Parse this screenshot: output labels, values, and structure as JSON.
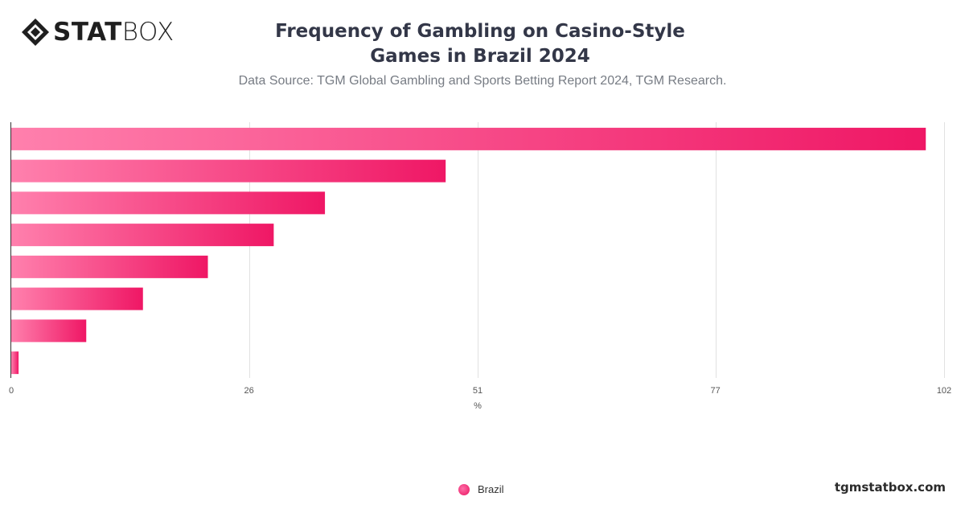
{
  "brand": {
    "logo_bold": "STAT",
    "logo_light": "BOX",
    "website": "tgmstatbox.com"
  },
  "colors": {
    "bar_start": "#ff80ad",
    "bar_end": "#ef1765",
    "grid": "#e1e1e1",
    "axis": "#333333"
  },
  "chart_data": {
    "type": "bar",
    "orientation": "horizontal",
    "title": "Frequency of Gambling on Casino-Style Games in Brazil 2024",
    "subtitle": "Data Source: TGM Global Gambling and Sports Betting Report 2024, TGM Research.",
    "xlabel": "%",
    "ylabel": "",
    "xlim": [
      0,
      102
    ],
    "xticks": [
      "0",
      "26",
      "51",
      "77",
      "102"
    ],
    "grid": true,
    "legend_position": "bottom",
    "series": [
      {
        "name": "Brazil",
        "values": [
          100,
          47.5,
          34.3,
          28.7,
          21.5,
          14.4,
          8.2,
          0.8
        ]
      }
    ]
  }
}
